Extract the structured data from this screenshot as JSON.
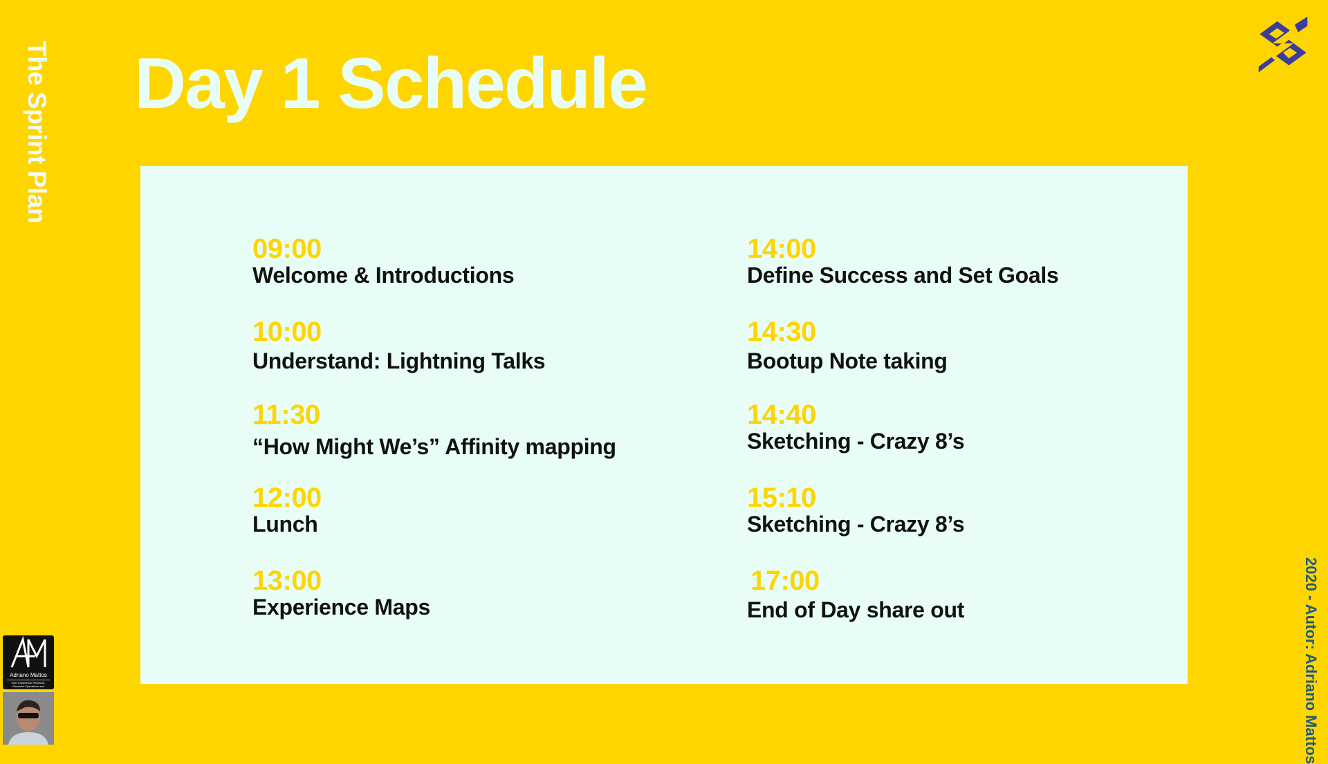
{
  "sidebar_title": "The Sprint Plan",
  "title": "Day 1 Schedule",
  "schedule": {
    "left": [
      {
        "time": "09:00",
        "label": "Welcome & Introductions"
      },
      {
        "time": "10:00",
        "label": "Understand: Lightning Talks"
      },
      {
        "time": "11:30",
        "label": "“How Might We’s” Affinity mapping"
      },
      {
        "time": "12:00",
        "label": "Lunch"
      },
      {
        "time": "13:00",
        "label": "Experience Maps"
      }
    ],
    "right": [
      {
        "time": "14:00",
        "label": "Define Success and Set Goals"
      },
      {
        "time": "14:30",
        "label": "Bootup Note taking"
      },
      {
        "time": "14:40",
        "label": "Sketching - Crazy 8’s"
      },
      {
        "time": "15:10",
        "label": "Sketching - Crazy 8’s"
      },
      {
        "time": "17:00",
        "label": "End of Day share out"
      }
    ]
  },
  "footer_author": "2020 - Autor:  Adriano Mattos",
  "author_logo": {
    "monogram": "AM",
    "name": "Adriano Mattos",
    "tagline": "User Experience Research, Research Operations and Leadership Project"
  },
  "colors": {
    "background": "#FFD500",
    "panel": "#E8FDF6",
    "time": "#FFD500",
    "brand_logo": "#3A3D9A",
    "author_text": "#1E5B7A"
  },
  "icons": {
    "brand_logo": "banco-do-brasil-logo",
    "avatar": "author-photo"
  }
}
